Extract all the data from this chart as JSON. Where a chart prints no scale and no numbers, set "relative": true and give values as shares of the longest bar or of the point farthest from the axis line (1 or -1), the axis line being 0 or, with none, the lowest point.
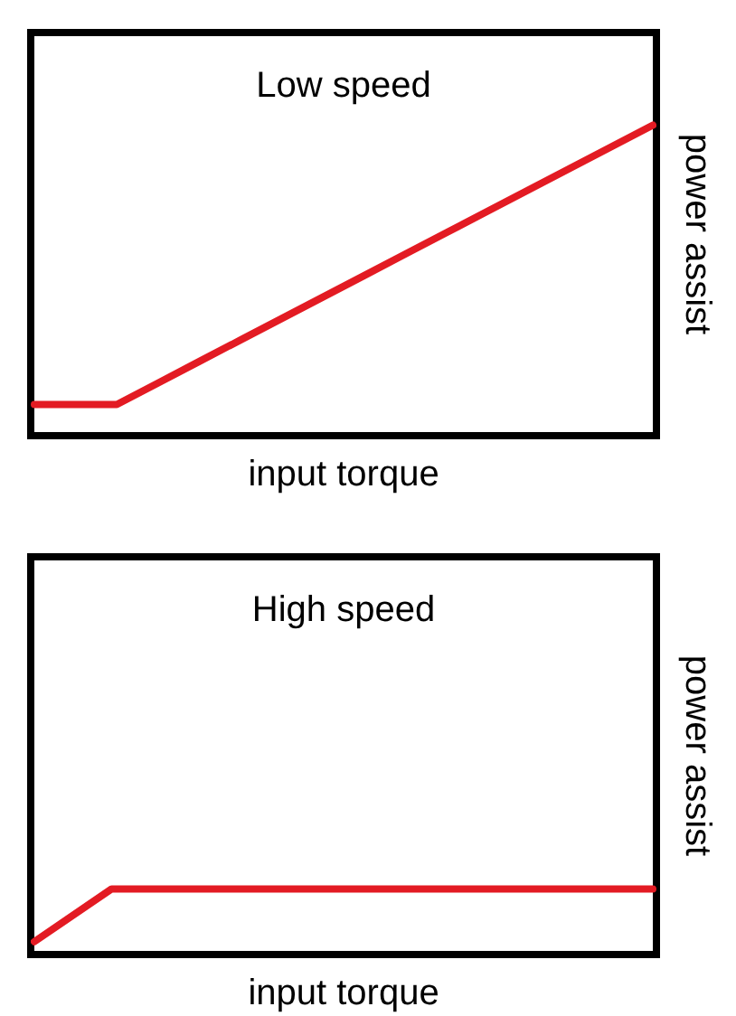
{
  "chart_data": [
    {
      "type": "line",
      "title": "Low speed",
      "xlabel": "input torque",
      "ylabel": "power assist",
      "relative": true,
      "marker": "none",
      "categories": [
        null,
        null,
        null,
        null,
        null,
        null,
        null,
        null,
        null,
        null,
        null,
        null,
        null,
        null,
        null,
        null
      ],
      "series": [
        {
          "color": "#e31b23",
          "values": [
            0.09,
            0.09,
            0.09,
            0.16,
            0.23,
            0.3,
            0.37,
            0.44,
            0.51,
            0.58,
            0.65,
            0.72,
            0.79,
            0.86,
            0.93,
            1
          ]
        }
      ]
    },
    {
      "type": "line",
      "title": "High speed",
      "xlabel": "input torque",
      "ylabel": "power assist",
      "relative": true,
      "marker": "none",
      "categories": [
        null,
        null,
        null,
        null,
        null,
        null,
        null,
        null,
        null
      ],
      "series": [
        {
          "color": "#e31b23",
          "values": [
            0.15,
            1,
            1,
            1,
            1,
            1,
            1,
            1,
            1
          ]
        }
      ]
    }
  ]
}
